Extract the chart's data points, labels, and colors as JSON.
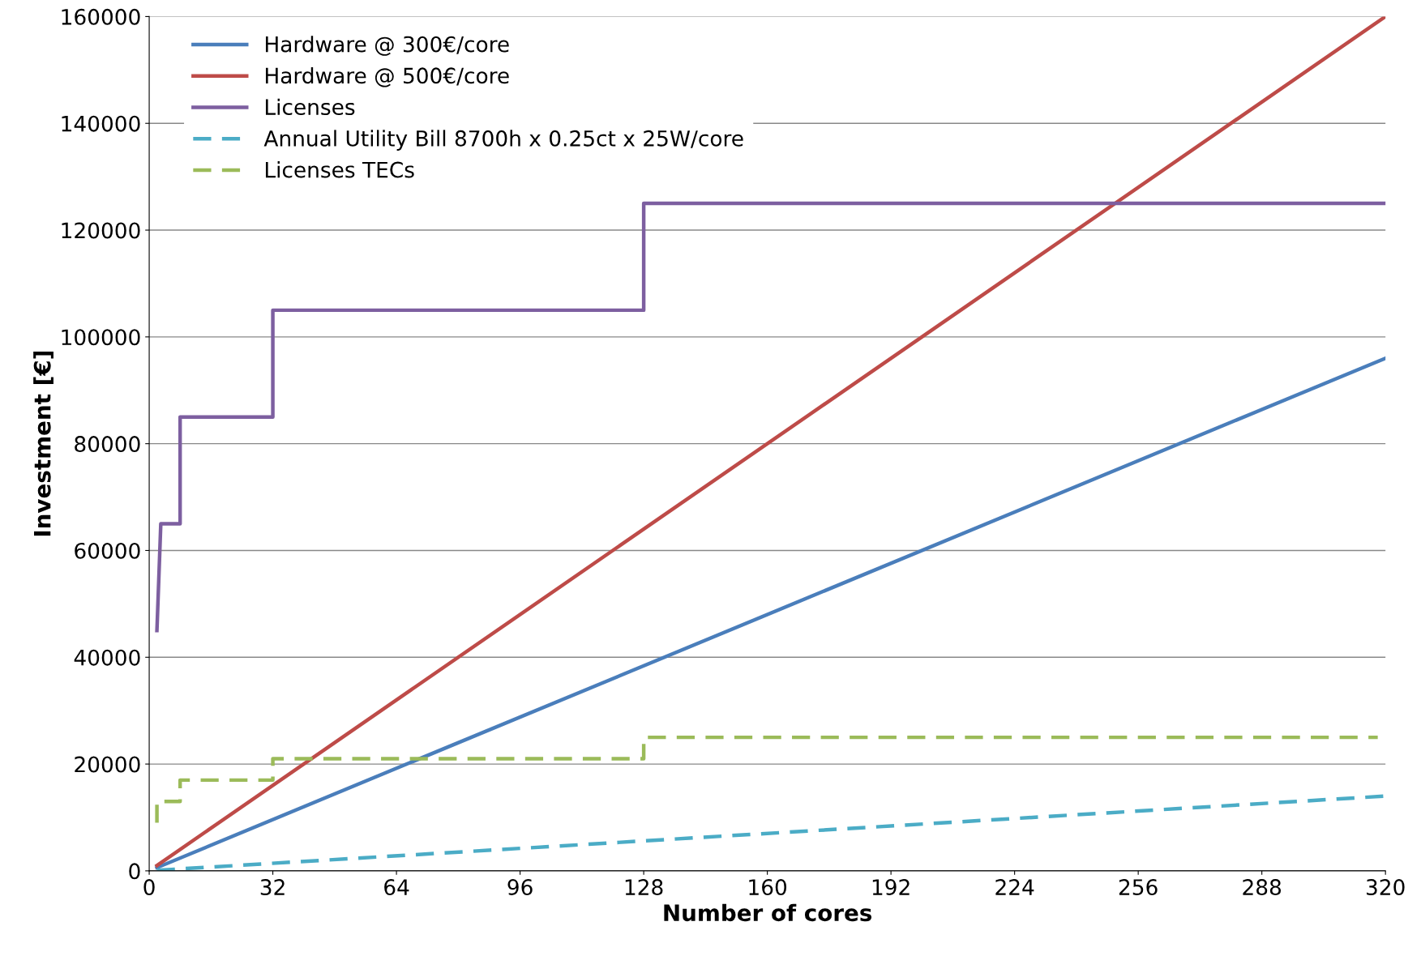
{
  "chart_data": {
    "type": "line",
    "xlabel": "Number of cores",
    "ylabel": "Investment [€]",
    "xlim": [
      0,
      320
    ],
    "xticks": [
      0,
      32,
      64,
      96,
      128,
      160,
      192,
      224,
      256,
      288,
      320
    ],
    "ylim": [
      0,
      160000
    ],
    "yticks": [
      0,
      20000,
      40000,
      60000,
      80000,
      100000,
      120000,
      140000,
      160000
    ],
    "grid": "y",
    "legend": "top left",
    "marker": "none",
    "series": [
      {
        "name": "Hardware @ 300€/core",
        "color": "#4a7ebb",
        "line_style": "solid",
        "x": [
          2,
          320
        ],
        "values": [
          600,
          96000
        ]
      },
      {
        "name": "Hardware @ 500€/core",
        "color": "#be4b48",
        "line_style": "solid",
        "x": [
          2,
          320
        ],
        "values": [
          1000,
          160000
        ]
      },
      {
        "name": "Licenses",
        "color": "#7d5fa0",
        "line_style": "solid",
        "x": [
          2,
          3,
          8,
          8,
          32,
          32,
          128,
          128,
          320
        ],
        "values": [
          45000,
          65000,
          65000,
          85000,
          85000,
          105000,
          105000,
          125000,
          125000
        ]
      },
      {
        "name": "Annual Utility Bill 8700h x 0.25ct x 25W/core",
        "color": "#4bacc6",
        "line_style": "dashed",
        "x": [
          2,
          320
        ],
        "values": [
          100,
          14000
        ]
      },
      {
        "name": "Licenses TECs",
        "color": "#9bbb59",
        "line_style": "dashed",
        "x": [
          2,
          2,
          8,
          8,
          32,
          32,
          128,
          128,
          318
        ],
        "values": [
          9000,
          13000,
          13000,
          17000,
          17000,
          21000,
          21000,
          25000,
          25000
        ]
      }
    ]
  }
}
